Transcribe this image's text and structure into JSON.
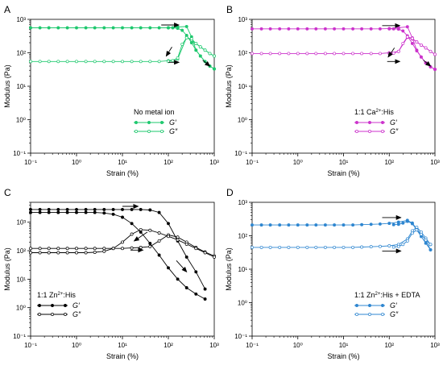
{
  "figure": {
    "panel_labels": [
      "A",
      "B",
      "C",
      "D"
    ]
  },
  "chart_data": [
    {
      "id": "A",
      "type": "line",
      "color": "#1ec86e",
      "xlabel": "Strain (%)",
      "ylabel": "Modulus (Pa)",
      "xscale": "log",
      "yscale": "log",
      "xlim": [
        0.1,
        1000
      ],
      "ylim": [
        0.1,
        1000
      ],
      "xticks": [
        "10⁻¹",
        "10⁰",
        "10¹",
        "10²",
        "10³"
      ],
      "yticks": [
        "10⁻¹",
        "10⁰",
        "10¹",
        "10²",
        "10³"
      ],
      "legend_title": "No metal ion",
      "legend_entries": [
        "G′",
        "G″"
      ],
      "legend_position": "bottom-right",
      "series": [
        {
          "name": "G′",
          "marker": "filled",
          "x": [
            0.1,
            0.16,
            0.25,
            0.4,
            0.63,
            1,
            1.6,
            2.5,
            4,
            6.3,
            10,
            16,
            25,
            40,
            63,
            100,
            160,
            250,
            320,
            400,
            500,
            630,
            800,
            1000
          ],
          "y": [
            560,
            560,
            560,
            560,
            560,
            560,
            560,
            560,
            560,
            560,
            560,
            560,
            560,
            560,
            560,
            560,
            590,
            610,
            300,
            120,
            80,
            55,
            40,
            33
          ]
        },
        {
          "name": "G″",
          "marker": "open",
          "x": [
            0.1,
            0.16,
            0.25,
            0.4,
            0.63,
            1,
            1.6,
            2.5,
            4,
            6.3,
            10,
            16,
            25,
            40,
            63,
            100,
            160,
            250,
            320,
            400,
            500,
            630,
            800,
            1000
          ],
          "y": [
            55,
            55,
            55,
            55,
            55,
            55,
            55,
            55,
            55,
            55,
            55,
            55,
            55,
            55,
            55,
            58,
            65,
            290,
            240,
            190,
            150,
            120,
            95,
            80
          ]
        },
        {
          "name": "G′ return",
          "marker": "filled",
          "x": [
            1000,
            800,
            630,
            500,
            400,
            320,
            250,
            200,
            160,
            125,
            100
          ],
          "y": [
            33,
            40,
            55,
            80,
            120,
            200,
            330,
            470,
            540,
            560,
            560
          ]
        },
        {
          "name": "G″ return",
          "marker": "open",
          "x": [
            1000,
            800,
            630,
            500,
            400,
            320,
            250,
            200,
            160,
            125,
            100
          ],
          "y": [
            80,
            95,
            120,
            150,
            190,
            260,
            280,
            180,
            70,
            58,
            55
          ]
        }
      ],
      "arrows": [
        {
          "from": [
            70,
            680
          ],
          "to": [
            170,
            680
          ]
        },
        {
          "from": [
            120,
            150
          ],
          "to": [
            90,
            80
          ]
        },
        {
          "from": [
            100,
            52
          ],
          "to": [
            170,
            52
          ]
        },
        {
          "from": [
            560,
            60
          ],
          "to": [
            800,
            40
          ]
        }
      ]
    },
    {
      "id": "B",
      "type": "line",
      "color": "#cc33cc",
      "xlabel": "Strain (%)",
      "ylabel": "Modulus (Pa)",
      "xscale": "log",
      "yscale": "log",
      "xlim": [
        0.1,
        1000
      ],
      "ylim": [
        0.1,
        1000
      ],
      "xticks": [
        "10⁻¹",
        "10⁰",
        "10¹",
        "10²",
        "10³"
      ],
      "yticks": [
        "10⁻¹",
        "10⁰",
        "10¹",
        "10²",
        "10³"
      ],
      "legend_title_parts": [
        "1:1 Ca",
        "2+",
        ":His"
      ],
      "legend_entries": [
        "G′",
        "G″"
      ],
      "legend_position": "bottom-right",
      "series": [
        {
          "name": "G′",
          "marker": "filled",
          "x": [
            0.1,
            0.16,
            0.25,
            0.4,
            0.63,
            1,
            1.6,
            2.5,
            4,
            6.3,
            10,
            16,
            25,
            40,
            63,
            100,
            160,
            250,
            320,
            400,
            500,
            630,
            800,
            1000
          ],
          "y": [
            520,
            520,
            520,
            520,
            520,
            520,
            520,
            520,
            520,
            520,
            520,
            520,
            520,
            520,
            520,
            530,
            560,
            600,
            280,
            120,
            75,
            50,
            38,
            32
          ]
        },
        {
          "name": "G″",
          "marker": "open",
          "x": [
            0.1,
            0.16,
            0.25,
            0.4,
            0.63,
            1,
            1.6,
            2.5,
            4,
            6.3,
            10,
            16,
            25,
            40,
            63,
            100,
            160,
            250,
            320,
            400,
            500,
            630,
            800,
            1000
          ],
          "y": [
            95,
            95,
            95,
            95,
            95,
            95,
            95,
            95,
            95,
            95,
            95,
            95,
            95,
            95,
            95,
            100,
            110,
            290,
            260,
            210,
            170,
            140,
            110,
            90
          ]
        },
        {
          "name": "G′ return",
          "marker": "filled",
          "x": [
            1000,
            800,
            630,
            500,
            400,
            320,
            250,
            200,
            160,
            125,
            100
          ],
          "y": [
            32,
            38,
            50,
            75,
            115,
            190,
            320,
            450,
            510,
            520,
            520
          ]
        },
        {
          "name": "G″ return",
          "marker": "open",
          "x": [
            1000,
            800,
            630,
            500,
            400,
            320,
            250,
            200,
            160,
            125,
            100
          ],
          "y": [
            90,
            110,
            140,
            170,
            210,
            270,
            300,
            190,
            110,
            98,
            95
          ]
        }
      ],
      "arrows": [
        {
          "from": [
            70,
            650
          ],
          "to": [
            170,
            650
          ]
        },
        {
          "from": [
            130,
            140
          ],
          "to": [
            95,
            75
          ]
        },
        {
          "from": [
            90,
            55
          ],
          "to": [
            170,
            55
          ]
        },
        {
          "from": [
            560,
            60
          ],
          "to": [
            800,
            40
          ]
        }
      ]
    },
    {
      "id": "C",
      "type": "line",
      "color": "#000000",
      "xlabel": "Strain (%)",
      "ylabel": "Modulus (Pa)",
      "xscale": "log",
      "yscale": "log",
      "xlim": [
        0.1,
        1000
      ],
      "ylim": [
        0.1,
        5000
      ],
      "xticks": [
        "10⁻¹",
        "10⁰",
        "10¹",
        "10²",
        "10³"
      ],
      "yticks": [
        "10⁻¹",
        "10⁰",
        "10¹",
        "10²",
        "10³"
      ],
      "legend_title_parts": [
        "1:1 Zn",
        "2+",
        ":His"
      ],
      "legend_entries": [
        "G′",
        "G″"
      ],
      "legend_position": "bottom-left",
      "series": [
        {
          "name": "G′",
          "marker": "filled",
          "x": [
            0.1,
            0.16,
            0.25,
            0.4,
            0.63,
            1,
            1.6,
            2.5,
            4,
            6.3,
            10,
            16,
            25,
            40,
            63,
            100,
            160,
            250,
            400,
            630
          ],
          "y": [
            2800,
            2800,
            2800,
            2800,
            2800,
            2800,
            2800,
            2800,
            2800,
            2800,
            2800,
            2800,
            2800,
            2700,
            2200,
            900,
            220,
            60,
            18,
            4.5
          ]
        },
        {
          "name": "G″",
          "marker": "open",
          "x": [
            0.1,
            0.16,
            0.25,
            0.4,
            0.63,
            1,
            1.6,
            2.5,
            4,
            6.3,
            10,
            16,
            25,
            40,
            63,
            100,
            160,
            250,
            400,
            630,
            1000
          ],
          "y": [
            120,
            120,
            120,
            120,
            120,
            120,
            120,
            120,
            120,
            120,
            120,
            125,
            130,
            140,
            220,
            360,
            300,
            200,
            130,
            90,
            65
          ]
        },
        {
          "name": "G′ return",
          "marker": "filled",
          "x": [
            0.1,
            0.16,
            0.25,
            0.4,
            0.63,
            1,
            1.6,
            2.5,
            4,
            6.3,
            10,
            16,
            25,
            40,
            63,
            100,
            160,
            250,
            400,
            630
          ],
          "y": [
            2200,
            2200,
            2200,
            2200,
            2200,
            2200,
            2200,
            2200,
            2100,
            1900,
            1500,
            900,
            450,
            180,
            70,
            25,
            10,
            5,
            3,
            2
          ]
        },
        {
          "name": "G″ return",
          "marker": "open",
          "x": [
            0.1,
            0.16,
            0.25,
            0.4,
            0.63,
            1,
            1.6,
            2.5,
            4,
            6.3,
            10,
            16,
            25,
            40,
            63,
            100,
            160,
            250,
            400,
            630,
            1000
          ],
          "y": [
            85,
            85,
            85,
            85,
            85,
            85,
            85,
            88,
            95,
            120,
            200,
            380,
            550,
            520,
            420,
            320,
            240,
            170,
            120,
            85,
            60
          ]
        }
      ],
      "arrows": [
        {
          "from": [
            10,
            3600
          ],
          "to": [
            22,
            3600
          ]
        },
        {
          "from": [
            35,
            450
          ],
          "to": [
            18,
            220
          ]
        },
        {
          "from": [
            15,
            105
          ],
          "to": [
            28,
            105
          ]
        },
        {
          "from": [
            150,
            45
          ],
          "to": [
            250,
            18
          ]
        }
      ]
    },
    {
      "id": "D",
      "type": "line",
      "color": "#2e86d0",
      "xlabel": "Strain (%)",
      "ylabel": "Modulus (Pa)",
      "xscale": "log",
      "yscale": "log",
      "xlim": [
        0.1,
        1000
      ],
      "ylim": [
        0.1,
        1000
      ],
      "xticks": [
        "10⁻¹",
        "10⁰",
        "10¹",
        "10²",
        "10³"
      ],
      "yticks": [
        "10⁻¹",
        "10⁰",
        "10¹",
        "10²",
        "10³"
      ],
      "legend_title_parts": [
        "1:1 Zn",
        "2+",
        ":His + EDTA"
      ],
      "legend_entries": [
        "G′",
        "G″"
      ],
      "legend_position": "bottom-right",
      "series": [
        {
          "name": "G′",
          "marker": "filled",
          "x": [
            0.1,
            0.16,
            0.25,
            0.4,
            0.63,
            1,
            1.6,
            2.5,
            4,
            6.3,
            10,
            16,
            25,
            40,
            63,
            100,
            160,
            250,
            320,
            400,
            500,
            630,
            800
          ],
          "y": [
            210,
            210,
            210,
            210,
            210,
            210,
            210,
            210,
            210,
            210,
            210,
            210,
            215,
            220,
            225,
            235,
            255,
            290,
            240,
            160,
            110,
            75,
            38
          ]
        },
        {
          "name": "G″",
          "marker": "open",
          "x": [
            0.1,
            0.16,
            0.25,
            0.4,
            0.63,
            1,
            1.6,
            2.5,
            4,
            6.3,
            10,
            16,
            25,
            40,
            63,
            100,
            160,
            250,
            320,
            400,
            500,
            630,
            800
          ],
          "y": [
            45,
            45,
            45,
            45,
            45,
            45,
            45,
            45,
            45,
            45,
            45,
            45,
            46,
            47,
            48,
            50,
            55,
            80,
            140,
            180,
            130,
            85,
            55
          ]
        },
        {
          "name": "G′ return",
          "marker": "filled",
          "x": [
            800,
            630,
            500,
            400,
            320,
            250,
            200,
            160,
            125
          ],
          "y": [
            38,
            60,
            95,
            150,
            230,
            270,
            240,
            220,
            215
          ]
        },
        {
          "name": "G″ return",
          "marker": "open",
          "x": [
            800,
            630,
            500,
            400,
            320,
            250,
            200,
            160,
            125
          ],
          "y": [
            55,
            75,
            110,
            150,
            120,
            70,
            55,
            48,
            46
          ]
        }
      ],
      "arrows": [
        {
          "from": [
            70,
            350
          ],
          "to": [
            180,
            350
          ]
        },
        {
          "from": [
            70,
            35
          ],
          "to": [
            180,
            35
          ]
        }
      ]
    }
  ]
}
